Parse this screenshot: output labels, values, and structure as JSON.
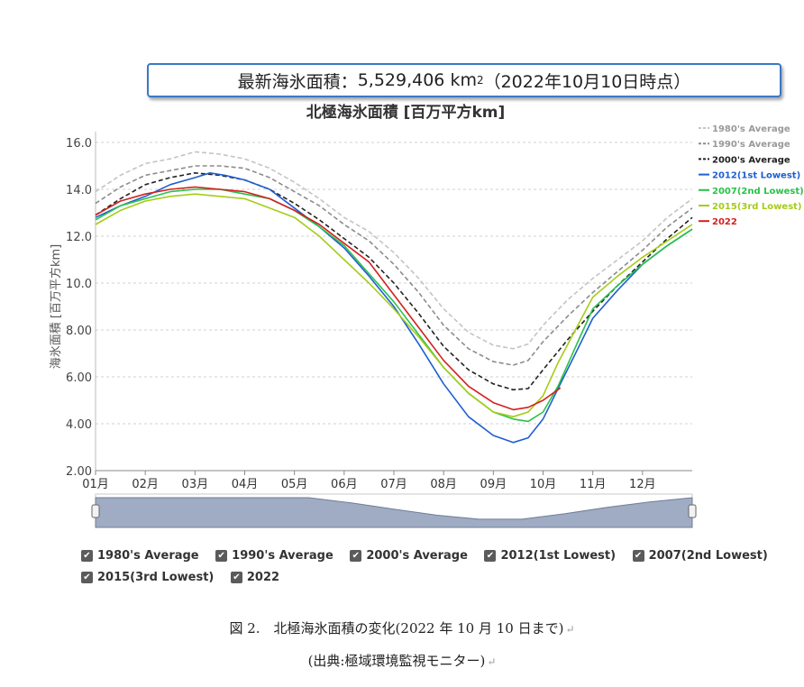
{
  "banner": {
    "prefix": "最新海氷面積：",
    "value": "5,529,406",
    "unit": "km",
    "unit_sup": "2",
    "suffix": "（2022年10月10日時点）"
  },
  "controls": [
    {
      "label": "1980's Average",
      "checked": true
    },
    {
      "label": "1990's Average",
      "checked": true
    },
    {
      "label": "2000's Average",
      "checked": true
    },
    {
      "label": "2012(1st Lowest)",
      "checked": true
    },
    {
      "label": "2007(2nd Lowest)",
      "checked": true
    },
    {
      "label": "2015(3rd Lowest)",
      "checked": true
    },
    {
      "label": "2022",
      "checked": true
    }
  ],
  "caption": {
    "line1": "図 2.　北極海氷面積の変化(2022 年 10 月 10 日まで)",
    "line2": "(出典:極域環境監視モニター)"
  },
  "chart_data": {
    "type": "line",
    "title": "北極海氷面積 [百万平方km]",
    "ylabel": "海氷面積 [百万平方km]",
    "xlabel": "",
    "ylim": [
      2.0,
      16.0
    ],
    "yticks": [
      "2.00",
      "4.00",
      "6.00",
      "8.00",
      "10.0",
      "12.0",
      "14.0",
      "16.0"
    ],
    "xlim": [
      1,
      13
    ],
    "xticks": [
      "01月",
      "02月",
      "03月",
      "04月",
      "05月",
      "06月",
      "07月",
      "08月",
      "09月",
      "10月",
      "11月",
      "12月"
    ],
    "grid": true,
    "legend_position": "right",
    "series": [
      {
        "name": "1980's Average",
        "color": "#c4c4c4",
        "dash": true,
        "x": [
          1,
          1.5,
          2,
          2.5,
          3,
          3.5,
          4,
          4.5,
          5,
          5.5,
          6,
          6.5,
          7,
          7.5,
          8,
          8.5,
          9,
          9.4,
          9.7,
          10,
          10.5,
          11,
          11.5,
          12,
          12.5,
          13
        ],
        "y": [
          13.9,
          14.6,
          15.1,
          15.3,
          15.6,
          15.5,
          15.3,
          14.9,
          14.3,
          13.6,
          12.8,
          12.2,
          11.3,
          10.2,
          8.9,
          7.9,
          7.35,
          7.2,
          7.4,
          8.2,
          9.3,
          10.2,
          11.0,
          11.8,
          12.8,
          13.6
        ]
      },
      {
        "name": "1990's Average",
        "color": "#8c8c8c",
        "dash": true,
        "x": [
          1,
          1.5,
          2,
          2.5,
          3,
          3.5,
          4,
          4.5,
          5,
          5.5,
          6,
          6.5,
          7,
          7.5,
          8,
          8.5,
          9,
          9.4,
          9.7,
          10,
          10.5,
          11,
          11.5,
          12,
          12.5,
          13
        ],
        "y": [
          13.4,
          14.1,
          14.6,
          14.8,
          15.0,
          15.0,
          14.9,
          14.5,
          13.9,
          13.3,
          12.5,
          11.8,
          10.8,
          9.6,
          8.2,
          7.2,
          6.65,
          6.5,
          6.7,
          7.5,
          8.6,
          9.6,
          10.5,
          11.4,
          12.4,
          13.2
        ]
      },
      {
        "name": "2000's Average",
        "color": "#222222",
        "dash": true,
        "x": [
          1,
          1.5,
          2,
          2.5,
          3,
          3.5,
          4,
          4.5,
          5,
          5.5,
          6,
          6.5,
          7,
          7.5,
          8,
          8.5,
          9,
          9.4,
          9.7,
          10,
          10.5,
          11,
          11.5,
          12,
          12.5,
          13
        ],
        "y": [
          12.9,
          13.6,
          14.2,
          14.5,
          14.7,
          14.6,
          14.4,
          14.0,
          13.4,
          12.7,
          11.9,
          11.1,
          10.0,
          8.7,
          7.3,
          6.3,
          5.7,
          5.45,
          5.5,
          6.3,
          7.6,
          8.8,
          9.9,
          10.9,
          11.9,
          12.8
        ]
      },
      {
        "name": "2012(1st Lowest)",
        "color": "#1f5fd0",
        "dash": false,
        "x": [
          1,
          1.5,
          2,
          2.5,
          3,
          3.3,
          3.6,
          4,
          4.5,
          5,
          5.5,
          6,
          6.5,
          7,
          7.5,
          8,
          8.5,
          9,
          9.4,
          9.7,
          10,
          10.3,
          10.7,
          11,
          11.5,
          12,
          12.5,
          13
        ],
        "y": [
          12.8,
          13.3,
          13.7,
          14.2,
          14.5,
          14.7,
          14.6,
          14.4,
          14.0,
          13.2,
          12.4,
          11.5,
          10.3,
          9.0,
          7.4,
          5.7,
          4.3,
          3.5,
          3.2,
          3.4,
          4.2,
          5.5,
          7.2,
          8.5,
          9.7,
          10.8,
          11.6,
          12.3
        ]
      },
      {
        "name": "2007(2nd Lowest)",
        "color": "#28c24a",
        "dash": false,
        "x": [
          1,
          1.5,
          2,
          2.5,
          3,
          3.5,
          4,
          4.5,
          5,
          5.5,
          6,
          6.5,
          7,
          7.5,
          8,
          8.5,
          9,
          9.4,
          9.7,
          10,
          10.3,
          10.7,
          11,
          11.5,
          12,
          12.5,
          13
        ],
        "y": [
          12.7,
          13.3,
          13.6,
          13.9,
          14.0,
          14.0,
          13.8,
          13.6,
          13.1,
          12.4,
          11.6,
          10.4,
          9.2,
          7.8,
          6.4,
          5.3,
          4.5,
          4.2,
          4.1,
          4.5,
          5.6,
          7.5,
          8.9,
          9.9,
          10.8,
          11.6,
          12.3
        ]
      },
      {
        "name": "2015(3rd Lowest)",
        "color": "#a6cc17",
        "dash": false,
        "x": [
          1,
          1.5,
          2,
          2.5,
          3,
          3.5,
          4,
          4.5,
          5,
          5.5,
          6,
          6.5,
          7,
          7.5,
          8,
          8.5,
          9,
          9.4,
          9.7,
          10,
          10.3,
          10.7,
          11,
          11.5,
          12,
          12.5,
          13
        ],
        "y": [
          12.5,
          13.1,
          13.5,
          13.7,
          13.8,
          13.7,
          13.6,
          13.2,
          12.8,
          12.0,
          11.0,
          10.0,
          8.9,
          7.7,
          6.4,
          5.3,
          4.5,
          4.3,
          4.5,
          5.2,
          6.6,
          8.2,
          9.4,
          10.3,
          11.1,
          11.8,
          12.5
        ]
      },
      {
        "name": "2022",
        "color": "#d42020",
        "dash": false,
        "x": [
          1,
          1.5,
          2,
          2.5,
          3,
          3.5,
          4,
          4.5,
          5,
          5.5,
          6,
          6.5,
          7,
          7.5,
          8,
          8.5,
          9,
          9.4,
          9.7,
          10,
          10.35
        ],
        "y": [
          12.9,
          13.5,
          13.8,
          14.0,
          14.1,
          14.0,
          13.9,
          13.6,
          13.1,
          12.5,
          11.7,
          10.9,
          9.5,
          8.1,
          6.7,
          5.6,
          4.9,
          4.6,
          4.7,
          5.0,
          5.53
        ]
      }
    ],
    "navigator_y": [
      13.0,
      13.3,
      13.5,
      13.4,
      13.0,
      12.2,
      11.0,
      9.6,
      8.3,
      7.4,
      7.4,
      8.6,
      10.0,
      11.2,
      12.3
    ]
  }
}
